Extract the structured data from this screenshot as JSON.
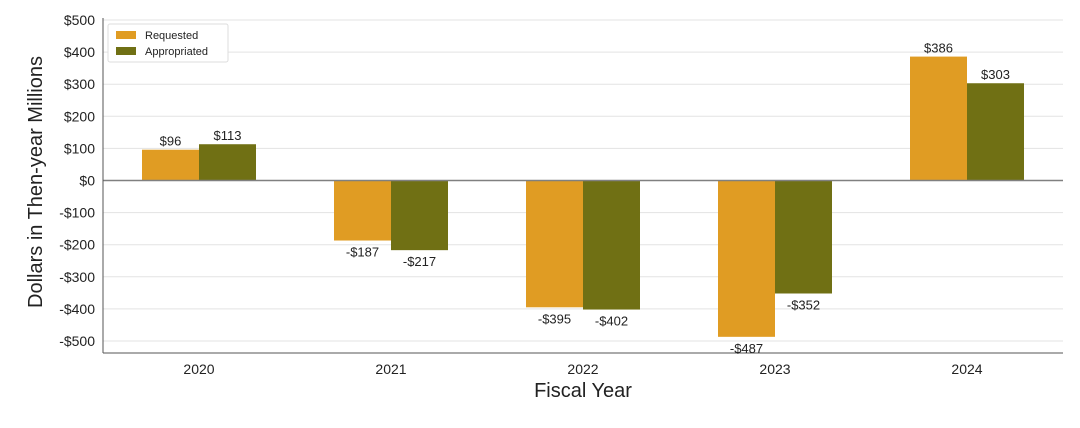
{
  "chart_data": {
    "type": "bar",
    "title": "",
    "xlabel": "Fiscal Year",
    "ylabel": "Dollars in Then-year Millions",
    "categories": [
      "2020",
      "2021",
      "2022",
      "2023",
      "2024"
    ],
    "series": [
      {
        "name": "Requested",
        "color": "#E09C23",
        "values": [
          96,
          -187,
          -395,
          -487,
          386
        ]
      },
      {
        "name": "Appropriated",
        "color": "#707014",
        "values": [
          113,
          -217,
          -402,
          -352,
          303
        ]
      }
    ],
    "data_labels": [
      [
        "$96",
        "-$187",
        "-$395",
        "-$487",
        "$386"
      ],
      [
        "$113",
        "-$217",
        "-$402",
        "-$352",
        "$303"
      ]
    ],
    "ylim": [
      -500,
      500
    ],
    "yticks": [
      500,
      400,
      300,
      200,
      100,
      0,
      -100,
      -200,
      -300,
      -400,
      -500
    ],
    "ytick_labels": [
      "$500",
      "$400",
      "$300",
      "$200",
      "$100",
      "$0",
      "-$100",
      "-$200",
      "-$300",
      "-$400",
      "-$500"
    ],
    "grid": true,
    "legend_position": "top-left"
  }
}
